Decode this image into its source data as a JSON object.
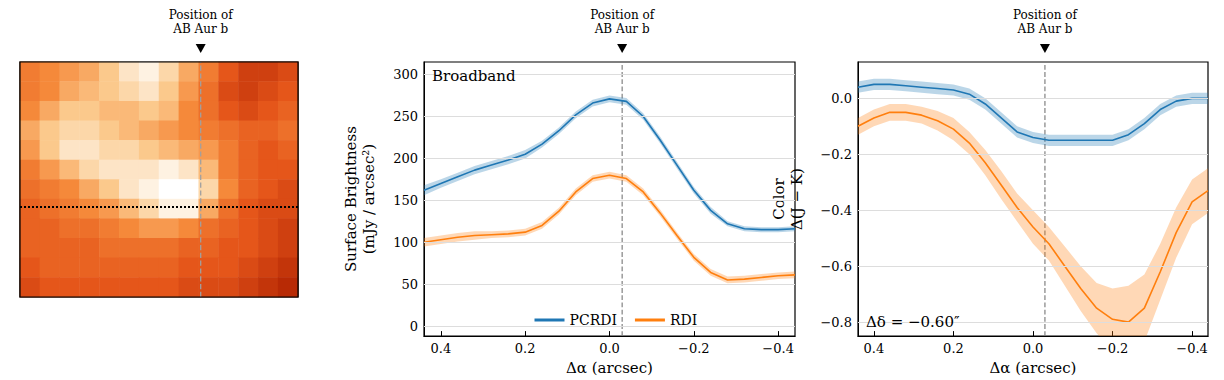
{
  "chart_data": [
    {
      "type": "heatmap",
      "tick_labels": false,
      "xlim": [
        0,
        14
      ],
      "ylim": [
        12,
        0
      ],
      "color_range": [
        0,
        1
      ],
      "values": [
        [
          0.55,
          0.6,
          0.65,
          0.7,
          0.8,
          0.9,
          0.95,
          0.85,
          0.7,
          0.55,
          0.4,
          0.3,
          0.3,
          0.35
        ],
        [
          0.55,
          0.6,
          0.7,
          0.75,
          0.8,
          0.85,
          0.9,
          0.8,
          0.65,
          0.5,
          0.35,
          0.3,
          0.35,
          0.4
        ],
        [
          0.6,
          0.7,
          0.8,
          0.8,
          0.75,
          0.75,
          0.8,
          0.75,
          0.6,
          0.5,
          0.4,
          0.35,
          0.4,
          0.45
        ],
        [
          0.7,
          0.8,
          0.85,
          0.85,
          0.8,
          0.75,
          0.7,
          0.65,
          0.6,
          0.55,
          0.5,
          0.45,
          0.45,
          0.5
        ],
        [
          0.65,
          0.8,
          0.9,
          0.9,
          0.85,
          0.85,
          0.8,
          0.75,
          0.7,
          0.65,
          0.55,
          0.45,
          0.4,
          0.45
        ],
        [
          0.55,
          0.65,
          0.75,
          0.85,
          0.9,
          0.9,
          0.9,
          0.95,
          0.9,
          0.75,
          0.55,
          0.45,
          0.4,
          0.4
        ],
        [
          0.5,
          0.55,
          0.6,
          0.7,
          0.8,
          0.9,
          0.95,
          1.0,
          1.0,
          0.85,
          0.6,
          0.45,
          0.4,
          0.35
        ],
        [
          0.45,
          0.5,
          0.55,
          0.6,
          0.65,
          0.75,
          0.85,
          0.95,
          0.95,
          0.7,
          0.5,
          0.4,
          0.35,
          0.35
        ],
        [
          0.45,
          0.45,
          0.5,
          0.5,
          0.55,
          0.6,
          0.65,
          0.65,
          0.6,
          0.5,
          0.45,
          0.4,
          0.35,
          0.3
        ],
        [
          0.45,
          0.45,
          0.45,
          0.45,
          0.5,
          0.5,
          0.5,
          0.5,
          0.45,
          0.45,
          0.4,
          0.4,
          0.35,
          0.3
        ],
        [
          0.4,
          0.45,
          0.45,
          0.45,
          0.45,
          0.45,
          0.45,
          0.45,
          0.4,
          0.4,
          0.4,
          0.35,
          0.3,
          0.25
        ],
        [
          0.35,
          0.4,
          0.4,
          0.4,
          0.4,
          0.4,
          0.4,
          0.4,
          0.35,
          0.35,
          0.35,
          0.3,
          0.25,
          0.2
        ]
      ],
      "planet_position": {
        "x": 9.1,
        "label": "Position of\nAB Aur b"
      },
      "profile_y": 7.4
    },
    {
      "type": "line",
      "annotation": "Broadband",
      "xlabel": "Δα (arcsec)",
      "ylabel": "Surface Brightness\n(mJy / arcsec²)",
      "xlim": [
        0.44,
        -0.44
      ],
      "xticks": [
        0.4,
        0.2,
        {
          "value": 0,
          "label": "0.0"
        },
        {
          "value": -0.2,
          "label": "−0.2"
        },
        {
          "value": -0.4,
          "label": "−0.4"
        }
      ],
      "ylim": [
        -12,
        315
      ],
      "yticks": [
        0,
        50,
        100,
        150,
        200,
        250,
        300
      ],
      "grid": "y",
      "legend": "lower center",
      "planet_position": {
        "x": -0.03,
        "label": "Position of\nAB Aur b"
      },
      "x": [
        0.44,
        0.4,
        0.36,
        0.32,
        0.28,
        0.24,
        0.2,
        0.16,
        0.12,
        0.08,
        0.04,
        0,
        -0.04,
        -0.08,
        -0.12,
        -0.16,
        -0.2,
        -0.24,
        -0.28,
        -0.32,
        -0.36,
        -0.4,
        -0.44
      ],
      "series": [
        {
          "name": "PCRDI",
          "color": "#1f77b4",
          "values": [
            162,
            170,
            178,
            186,
            192,
            198,
            205,
            217,
            233,
            252,
            266,
            271,
            268,
            250,
            222,
            192,
            162,
            138,
            122,
            116,
            115,
            115,
            116
          ],
          "errors": [
            6,
            5,
            5,
            5,
            5,
            5,
            5,
            4,
            4,
            4,
            4,
            4,
            4,
            4,
            4,
            4,
            4,
            4,
            3,
            3,
            3,
            3,
            3
          ]
        },
        {
          "name": "RDI",
          "color": "#ff7f0e",
          "values": [
            100,
            103,
            106,
            108,
            109,
            110,
            112,
            120,
            137,
            160,
            176,
            180,
            176,
            160,
            135,
            108,
            82,
            64,
            55,
            56,
            58,
            60,
            61
          ],
          "errors": [
            5,
            5,
            5,
            5,
            4,
            4,
            4,
            4,
            4,
            4,
            4,
            4,
            4,
            4,
            4,
            4,
            4,
            4,
            4,
            4,
            4,
            4,
            4
          ]
        }
      ]
    },
    {
      "type": "line",
      "annotation": "Δδ = −0.60″",
      "xlabel": "Δα (arcsec)",
      "ylabel": "Color\nΔ(J − K)",
      "xlim": [
        0.44,
        -0.44
      ],
      "xticks": [
        0.4,
        0.2,
        {
          "value": 0,
          "label": "0.0"
        },
        {
          "value": -0.2,
          "label": "−0.2"
        },
        {
          "value": -0.4,
          "label": "−0.4"
        }
      ],
      "ylim": [
        -0.85,
        0.13
      ],
      "yticks": [
        {
          "value": -0.8,
          "label": "−0.8"
        },
        {
          "value": -0.6,
          "label": "−0.6"
        },
        {
          "value": -0.4,
          "label": "−0.4"
        },
        {
          "value": -0.2,
          "label": "−0.2"
        },
        {
          "value": 0,
          "label": "0.0"
        }
      ],
      "grid": "y",
      "planet_position": {
        "x": -0.03,
        "label": "Position of\nAB Aur b"
      },
      "x": [
        0.44,
        0.4,
        0.36,
        0.32,
        0.28,
        0.24,
        0.2,
        0.16,
        0.12,
        0.08,
        0.04,
        0,
        -0.04,
        -0.08,
        -0.12,
        -0.16,
        -0.2,
        -0.24,
        -0.28,
        -0.32,
        -0.36,
        -0.4,
        -0.44
      ],
      "series": [
        {
          "name": "PCRDI",
          "color": "#1f77b4",
          "values": [
            0.04,
            0.05,
            0.05,
            0.045,
            0.04,
            0.035,
            0.03,
            0.015,
            -0.02,
            -0.07,
            -0.12,
            -0.14,
            -0.15,
            -0.15,
            -0.15,
            -0.15,
            -0.15,
            -0.13,
            -0.09,
            -0.04,
            -0.01,
            0,
            0
          ],
          "errors": [
            0.02,
            0.02,
            0.02,
            0.02,
            0.02,
            0.02,
            0.02,
            0.02,
            0.02,
            0.02,
            0.02,
            0.02,
            0.02,
            0.02,
            0.02,
            0.02,
            0.02,
            0.02,
            0.02,
            0.02,
            0.02,
            0.02,
            0.02
          ]
        },
        {
          "name": "RDI",
          "color": "#ff7f0e",
          "values": [
            -0.1,
            -0.07,
            -0.05,
            -0.05,
            -0.06,
            -0.08,
            -0.11,
            -0.16,
            -0.23,
            -0.31,
            -0.39,
            -0.46,
            -0.52,
            -0.6,
            -0.68,
            -0.75,
            -0.79,
            -0.8,
            -0.75,
            -0.62,
            -0.48,
            -0.37,
            -0.33
          ],
          "errors": [
            0.03,
            0.03,
            0.03,
            0.03,
            0.03,
            0.035,
            0.04,
            0.04,
            0.045,
            0.05,
            0.05,
            0.06,
            0.06,
            0.07,
            0.08,
            0.09,
            0.11,
            0.13,
            0.12,
            0.1,
            0.09,
            0.08,
            0.08
          ]
        }
      ]
    }
  ]
}
